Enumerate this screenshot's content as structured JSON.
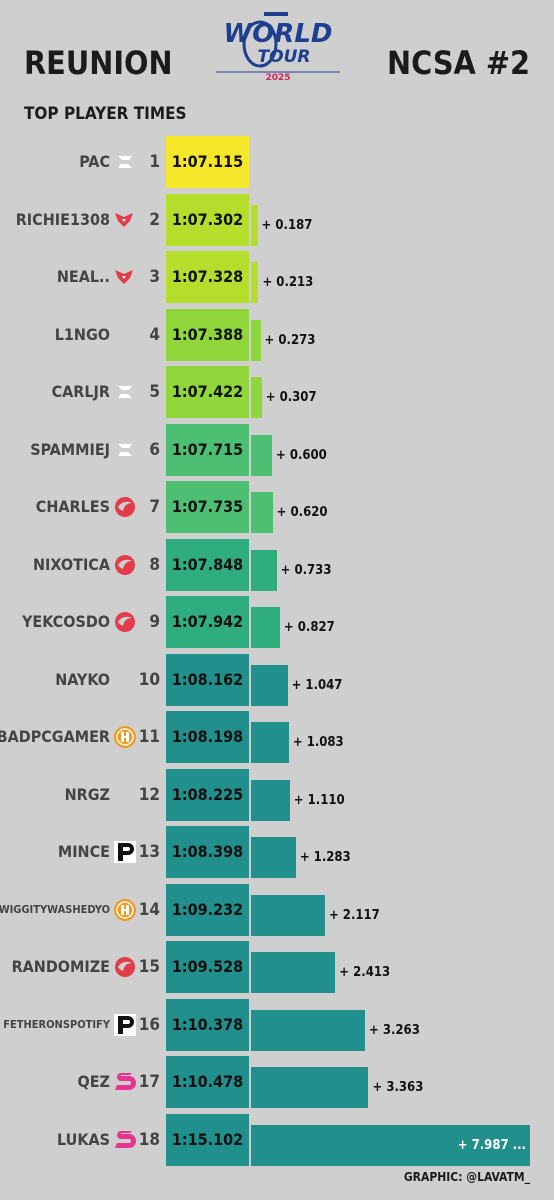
{
  "header": {
    "event": "REUNION",
    "region": "NCSA #2",
    "subtitle": "TOP  PLAYER TIMES",
    "logo_line1": "WORLD",
    "logo_line2": "TOUR",
    "logo_year": "2025",
    "credit": "GRAPHIC: @LAVATM_"
  },
  "colors": {
    "background": "#cfcfcf",
    "rank1": "#f6e62a",
    "yellowgreen": "#b5dd2b",
    "lightgreen": "#8fd63b",
    "green": "#4dbf72",
    "teal1": "#2fad7e",
    "teal2": "#218f8c"
  },
  "chart_data": {
    "type": "bar",
    "title": "TOP  PLAYER TIMES",
    "players": [
      {
        "rank": "1",
        "name": "PAC",
        "team_icon": "z-team-icon",
        "time": "1:07.115",
        "diff": 0.0,
        "diff_label": ""
      },
      {
        "rank": "2",
        "name": "RICHIE1308",
        "team_icon": "red-fox-icon",
        "time": "1:07.302",
        "diff": 0.187,
        "diff_label": "+ 0.187"
      },
      {
        "rank": "3",
        "name": "NEAL..",
        "team_icon": "red-fox-icon",
        "time": "1:07.328",
        "diff": 0.213,
        "diff_label": "+ 0.213"
      },
      {
        "rank": "4",
        "name": "L1NGO",
        "team_icon": "",
        "time": "1:07.388",
        "diff": 0.273,
        "diff_label": "+ 0.273"
      },
      {
        "rank": "5",
        "name": "CARLJR",
        "team_icon": "z-team-icon",
        "time": "1:07.422",
        "diff": 0.307,
        "diff_label": "+ 0.307"
      },
      {
        "rank": "6",
        "name": "SPAMMIEJ",
        "team_icon": "z-team-icon",
        "time": "1:07.715",
        "diff": 0.6,
        "diff_label": "+ 0.600"
      },
      {
        "rank": "7",
        "name": "CHARLES",
        "team_icon": "red-swoosh-icon",
        "time": "1:07.735",
        "diff": 0.62,
        "diff_label": "+ 0.620"
      },
      {
        "rank": "8",
        "name": "NIXOTICA",
        "team_icon": "red-swoosh-icon",
        "time": "1:07.848",
        "diff": 0.733,
        "diff_label": "+ 0.733"
      },
      {
        "rank": "9",
        "name": "YEKCOSDO",
        "team_icon": "red-swoosh-icon",
        "time": "1:07.942",
        "diff": 0.827,
        "diff_label": "+ 0.827"
      },
      {
        "rank": "10",
        "name": "NAYKO",
        "team_icon": "",
        "time": "1:08.162",
        "diff": 1.047,
        "diff_label": "+ 1.047"
      },
      {
        "rank": "11",
        "name": "ABADPCGAMER",
        "team_icon": "orange-h-icon",
        "time": "1:08.198",
        "diff": 1.083,
        "diff_label": "+ 1.083"
      },
      {
        "rank": "12",
        "name": "NRGZ",
        "team_icon": "",
        "time": "1:08.225",
        "diff": 1.11,
        "diff_label": "+ 1.110"
      },
      {
        "rank": "13",
        "name": "MINCE",
        "team_icon": "black-p-icon",
        "time": "1:08.398",
        "diff": 1.283,
        "diff_label": "+ 1.283"
      },
      {
        "rank": "14",
        "name": "WIGGITYWASHEDYO",
        "team_icon": "orange-h-icon",
        "time": "1:09.232",
        "diff": 2.117,
        "diff_label": "+ 2.117"
      },
      {
        "rank": "15",
        "name": "RANDOMIZE",
        "team_icon": "red-swoosh-icon",
        "time": "1:09.528",
        "diff": 2.413,
        "diff_label": "+ 2.413"
      },
      {
        "rank": "16",
        "name": "FETHERONSPOTIFY",
        "team_icon": "black-p-icon",
        "time": "1:10.378",
        "diff": 3.263,
        "diff_label": "+ 3.263"
      },
      {
        "rank": "17",
        "name": "QEZ",
        "team_icon": "pink-s-icon",
        "time": "1:10.478",
        "diff": 3.363,
        "diff_label": "+ 3.363"
      },
      {
        "rank": "18",
        "name": "LUKAS",
        "team_icon": "pink-s-icon",
        "time": "1:15.102",
        "diff": 7.987,
        "diff_label": "+ 7.987 ..."
      }
    ]
  }
}
